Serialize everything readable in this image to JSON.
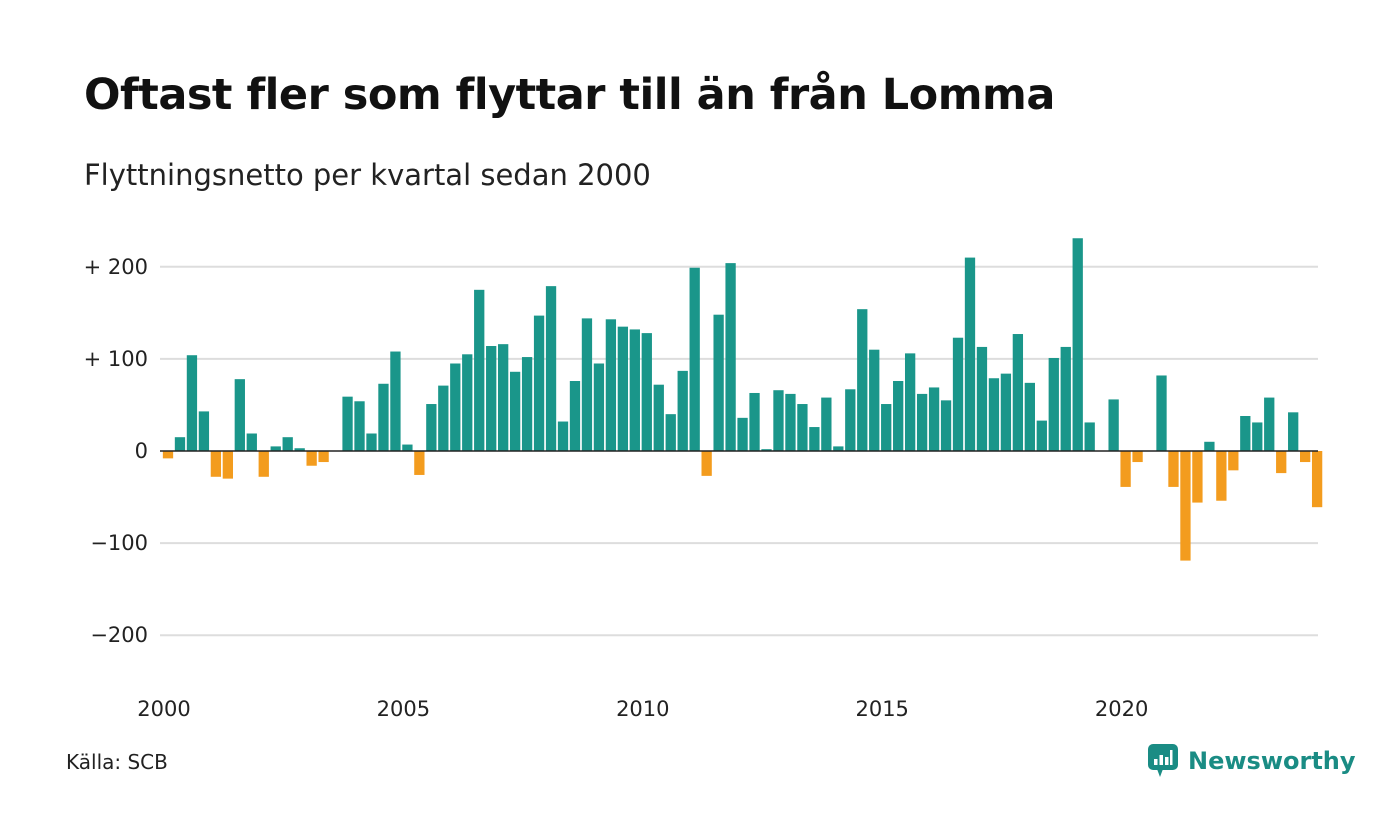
{
  "title": "Oftast fler som flyttar till än från Lomma",
  "subtitle": "Flyttningsnetto per kvartal sedan 2000",
  "source": "Källa: SCB",
  "brand": {
    "name": "Newsworthy",
    "icon": "newsworthy-logo-icon"
  },
  "colors": {
    "positive": "#1a968a",
    "negative": "#f39c1e",
    "grid": "#dddddd",
    "zero": "#222222"
  },
  "chart_data": {
    "type": "bar",
    "title": "Oftast fler som flyttar till än från Lomma",
    "subtitle": "Flyttningsnetto per kvartal sedan 2000",
    "xlabel": "",
    "ylabel": "",
    "start_year": 2000,
    "x_ticks": [
      "2000",
      "2005",
      "2010",
      "2015",
      "2020"
    ],
    "y_ticks": [
      {
        "value": 200,
        "label": "+ 200"
      },
      {
        "value": 100,
        "label": "+ 100"
      },
      {
        "value": 0,
        "label": "0"
      },
      {
        "value": -100,
        "label": "−100"
      },
      {
        "value": -200,
        "label": "−200"
      }
    ],
    "ylim": [
      -200,
      200
    ],
    "grid": true,
    "values": [
      -8,
      15,
      104,
      43,
      -28,
      -30,
      78,
      19,
      -28,
      5,
      15,
      3,
      -16,
      -12,
      0,
      59,
      54,
      19,
      73,
      108,
      7,
      -26,
      51,
      71,
      95,
      105,
      175,
      114,
      116,
      86,
      102,
      147,
      179,
      32,
      76,
      144,
      95,
      143,
      135,
      132,
      128,
      72,
      40,
      87,
      199,
      -27,
      148,
      204,
      36,
      63,
      2,
      66,
      62,
      51,
      26,
      58,
      5,
      67,
      154,
      110,
      51,
      76,
      106,
      62,
      69,
      55,
      123,
      210,
      113,
      79,
      84,
      127,
      74,
      33,
      101,
      113,
      231,
      31,
      0,
      56,
      -39,
      -12,
      0,
      82,
      -39,
      -119,
      -56,
      10,
      -54,
      -21,
      38,
      31,
      58,
      -24,
      42,
      -12,
      -61
    ]
  }
}
